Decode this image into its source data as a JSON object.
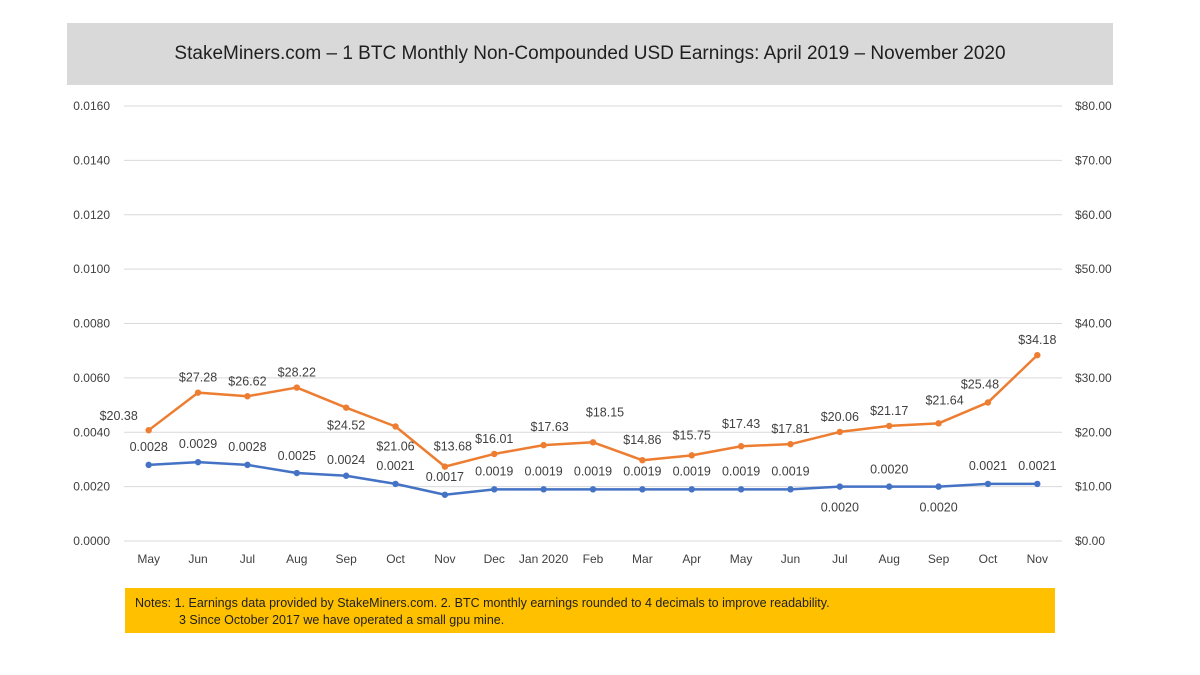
{
  "chart_data": {
    "type": "line",
    "title": "StakeMiners.com – 1 BTC Monthly Non-Compounded USD Earnings: April 2019 – November 2020",
    "categories": [
      "May",
      "Jun",
      "Jul",
      "Aug",
      "Sep",
      "Oct",
      "Nov",
      "Dec",
      "Jan 2020",
      "Feb",
      "Mar",
      "Apr",
      "May",
      "Jun",
      "Jul",
      "Aug",
      "Sep",
      "Oct",
      "Nov"
    ],
    "series": [
      {
        "axis": "left",
        "color": "#4472c4",
        "values": [
          0.0028,
          0.0029,
          0.0028,
          0.0025,
          0.0024,
          0.0021,
          0.0017,
          0.0019,
          0.0019,
          0.0019,
          0.0019,
          0.0019,
          0.0019,
          0.0019,
          0.002,
          0.002,
          0.002,
          0.0021,
          0.0021
        ],
        "labels": [
          "0.0028",
          "0.0029",
          "0.0028",
          "0.0025",
          "0.0024",
          "0.0021",
          "0.0017",
          "0.0019",
          "0.0019",
          "0.0019",
          "0.0019",
          "0.0019",
          "0.0019",
          "0.0019",
          "0.0020",
          "0.0020",
          "0.0020",
          "0.0021",
          "0.0021"
        ],
        "label_positions": [
          "above",
          "above",
          "above",
          "above",
          "above",
          "above",
          "below",
          "above",
          "above",
          "above",
          "above",
          "above",
          "above",
          "above",
          "below",
          "above",
          "below",
          "above",
          "above"
        ]
      },
      {
        "axis": "right",
        "color": "#ed7d31",
        "values": [
          20.38,
          27.28,
          26.62,
          28.22,
          24.52,
          21.06,
          13.68,
          16.01,
          17.63,
          18.15,
          14.86,
          15.75,
          17.43,
          17.81,
          20.06,
          21.17,
          21.64,
          25.48,
          34.18
        ],
        "labels": [
          "$20.38",
          "$27.28",
          "$26.62",
          "$28.22",
          "$24.52",
          "$21.06",
          "$13.68",
          "$16.01",
          "$17.63",
          "$18.15",
          "$14.86",
          "$15.75",
          "$17.43",
          "$17.81",
          "$20.06",
          "$21.17",
          "$21.64",
          "$25.48",
          "$34.18"
        ]
      }
    ],
    "y_left": {
      "ylim": [
        0,
        0.016
      ],
      "ticks": [
        "0.0000",
        "0.0020",
        "0.0040",
        "0.0060",
        "0.0080",
        "0.0100",
        "0.0120",
        "0.0140",
        "0.0160"
      ]
    },
    "y_right": {
      "ylim": [
        0,
        80
      ],
      "ticks": [
        "$0.00",
        "$10.00",
        "$20.00",
        "$30.00",
        "$40.00",
        "$50.00",
        "$60.00",
        "$70.00",
        "$80.00"
      ]
    },
    "grid": true,
    "legend": "none"
  },
  "notes": {
    "line1": "Notes:  1. Earnings data provided by StakeMiners.com.   2.  BTC monthly earnings rounded to 4 decimals to improve readability.",
    "line2": "3  Since October 2017 we have operated a small gpu mine."
  }
}
